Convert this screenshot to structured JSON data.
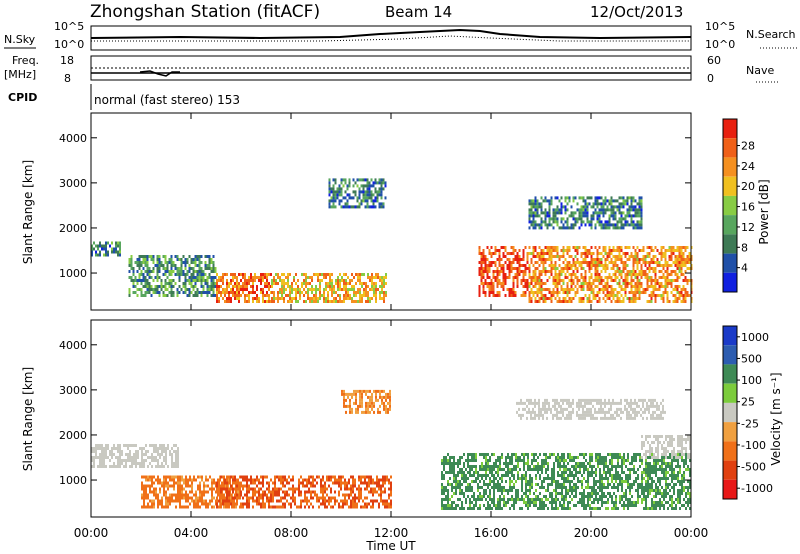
{
  "header": {
    "station": "Zhongshan Station (fitACF)",
    "beam": "Beam 14",
    "date": "12/Oct/2013"
  },
  "strips": {
    "nsky_label": "N.Sky",
    "nsearch_label": "N.Search",
    "nsky_ticks": [
      "10^5",
      "10^0"
    ],
    "nsearch_ticks": [
      "10^5",
      "10^0"
    ],
    "freq_label": [
      "Freq.",
      "[MHz]"
    ],
    "freq_ticks": [
      "18",
      "8"
    ],
    "nave_label": "Nave",
    "nave_ticks": [
      "60",
      "0"
    ],
    "cpid_label": "CPID",
    "cpid_text": "normal (fast stereo) 153"
  },
  "colors": {
    "power": [
      "#1020e0",
      "#2050a8",
      "#3e7a55",
      "#58a65e",
      "#88cc44",
      "#f0c020",
      "#f59020",
      "#f06018",
      "#e82010"
    ],
    "velocity": [
      "#1a3ac8",
      "#2c5cb0",
      "#3e8a55",
      "#7ccc3c",
      "#c9c9c1",
      "#f0a040",
      "#f07018",
      "#e04010",
      "#e81818"
    ]
  },
  "chart_data": [
    {
      "type": "heatmap",
      "name": "power",
      "xlabel": "",
      "ylabel": "Slant Range [km]",
      "xlim": [
        0,
        24
      ],
      "ylim": [
        180,
        4550
      ],
      "yticks": [
        1000,
        2000,
        3000,
        4000
      ],
      "colorbar": {
        "label": "Power [dB]",
        "ticks": [
          "4",
          "8",
          "12",
          "16",
          "20",
          "24",
          "28"
        ],
        "range": [
          0,
          30
        ]
      },
      "echo_regions": [
        {
          "t_start": 0.0,
          "t_end": 1.2,
          "r_min": 1400,
          "r_max": 1700,
          "value": 8
        },
        {
          "t_start": 1.5,
          "t_end": 5.0,
          "r_min": 500,
          "r_max": 1400,
          "value": 10
        },
        {
          "t_start": 5.0,
          "t_end": 7.2,
          "r_min": 400,
          "r_max": 1000,
          "value": 24
        },
        {
          "t_start": 7.2,
          "t_end": 11.8,
          "r_min": 400,
          "r_max": 1000,
          "value": 20
        },
        {
          "t_start": 9.5,
          "t_end": 11.8,
          "r_min": 2500,
          "r_max": 3100,
          "value": 8
        },
        {
          "t_start": 15.5,
          "t_end": 17.5,
          "r_min": 500,
          "r_max": 1600,
          "value": 26
        },
        {
          "t_start": 17.5,
          "t_end": 24.0,
          "r_min": 400,
          "r_max": 1600,
          "value": 22
        },
        {
          "t_start": 17.5,
          "t_end": 22.0,
          "r_min": 2000,
          "r_max": 2700,
          "value": 8
        }
      ]
    },
    {
      "type": "heatmap",
      "name": "velocity",
      "xlabel": "Time UT",
      "ylabel": "Slant Range [km]",
      "xlim": [
        0,
        24
      ],
      "ylim": [
        180,
        4550
      ],
      "yticks": [
        1000,
        2000,
        3000,
        4000
      ],
      "xticks": [
        "00:00",
        "04:00",
        "08:00",
        "12:00",
        "16:00",
        "20:00",
        "00:00"
      ],
      "colorbar": {
        "label": "Velocity [m s⁻¹]",
        "ticks": [
          "1000",
          "500",
          "100",
          "25",
          "-25",
          "-100",
          "-500",
          "-1000"
        ]
      },
      "echo_regions": [
        {
          "t_start": 0.0,
          "t_end": 3.5,
          "r_min": 1300,
          "r_max": 1800,
          "value": 0
        },
        {
          "t_start": 2.0,
          "t_end": 6.0,
          "r_min": 400,
          "r_max": 1100,
          "value": -150
        },
        {
          "t_start": 5.0,
          "t_end": 12.0,
          "r_min": 400,
          "r_max": 1100,
          "value": -500
        },
        {
          "t_start": 10.0,
          "t_end": 12.0,
          "r_min": 2500,
          "r_max": 3000,
          "value": -100
        },
        {
          "t_start": 14.0,
          "t_end": 24.0,
          "r_min": 400,
          "r_max": 1600,
          "value": 150
        },
        {
          "t_start": 17.0,
          "t_end": 23.0,
          "r_min": 2400,
          "r_max": 2800,
          "value": 0
        },
        {
          "t_start": 22.0,
          "t_end": 24.0,
          "r_min": 1500,
          "r_max": 2000,
          "value": 0
        }
      ]
    }
  ]
}
